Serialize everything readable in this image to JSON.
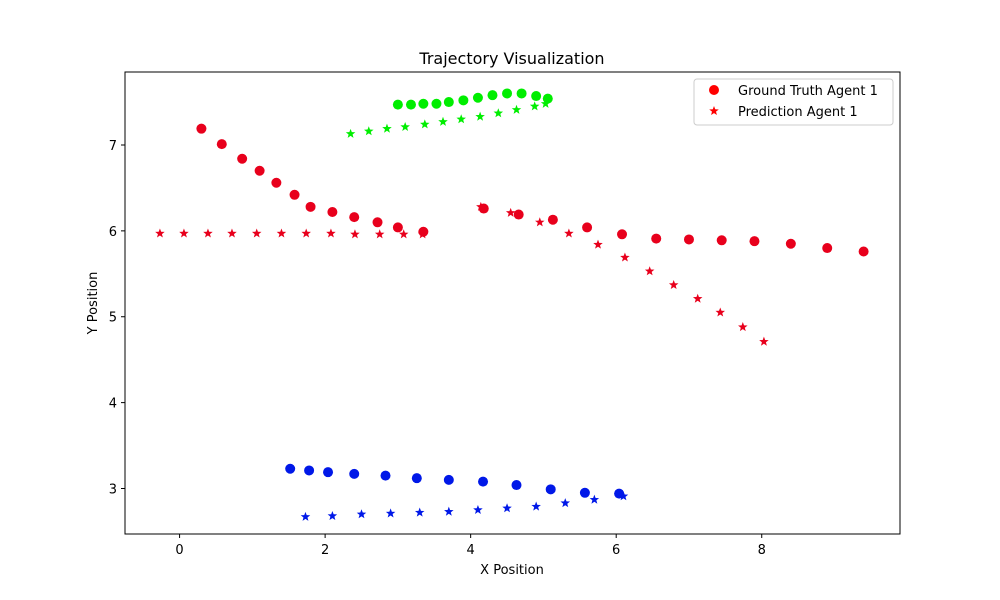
{
  "chart_data": {
    "type": "scatter",
    "title": "Trajectory Visualization",
    "xlabel": "X Position",
    "ylabel": "Y Position",
    "xlim": [
      -0.75,
      9.9
    ],
    "ylim": [
      2.47,
      7.85
    ],
    "xticks": [
      0,
      2,
      4,
      6,
      8
    ],
    "yticks": [
      3,
      4,
      5,
      6,
      7
    ],
    "grid": false,
    "legend": {
      "placement": "top-right",
      "entries": [
        {
          "label": "Ground Truth Agent 1",
          "marker": "circle",
          "color": "#ff0000"
        },
        {
          "label": "Prediction Agent 1",
          "marker": "star",
          "color": "#ff0000"
        }
      ]
    },
    "series": [
      {
        "marker": "circle",
        "color": "#e8001c",
        "points": [
          [
            0.3,
            7.19
          ],
          [
            0.58,
            7.01
          ],
          [
            0.86,
            6.84
          ],
          [
            1.1,
            6.7
          ],
          [
            1.33,
            6.56
          ],
          [
            1.58,
            6.42
          ],
          [
            1.8,
            6.28
          ],
          [
            2.1,
            6.22
          ],
          [
            2.4,
            6.16
          ],
          [
            2.72,
            6.1
          ],
          [
            3.0,
            6.04
          ],
          [
            3.35,
            5.99
          ]
        ]
      },
      {
        "marker": "star",
        "color": "#e8001c",
        "points": [
          [
            -0.27,
            5.97
          ],
          [
            0.06,
            5.97
          ],
          [
            0.39,
            5.97
          ],
          [
            0.72,
            5.97
          ],
          [
            1.06,
            5.97
          ],
          [
            1.4,
            5.97
          ],
          [
            1.74,
            5.97
          ],
          [
            2.08,
            5.97
          ],
          [
            2.41,
            5.96
          ],
          [
            2.75,
            5.96
          ],
          [
            3.08,
            5.96
          ],
          [
            3.34,
            5.96
          ]
        ]
      },
      {
        "marker": "circle",
        "color": "#e8001c",
        "points": [
          [
            4.18,
            6.26
          ],
          [
            4.66,
            6.19
          ],
          [
            5.13,
            6.13
          ],
          [
            5.6,
            6.04
          ],
          [
            6.08,
            5.96
          ],
          [
            6.55,
            5.91
          ],
          [
            7.0,
            5.9
          ],
          [
            7.45,
            5.89
          ],
          [
            7.9,
            5.88
          ],
          [
            8.4,
            5.85
          ],
          [
            8.9,
            5.8
          ],
          [
            9.4,
            5.76
          ]
        ]
      },
      {
        "marker": "star",
        "color": "#e8001c",
        "points": [
          [
            4.14,
            6.28
          ],
          [
            4.55,
            6.21
          ],
          [
            4.95,
            6.1
          ],
          [
            5.35,
            5.97
          ],
          [
            5.75,
            5.84
          ],
          [
            6.12,
            5.69
          ],
          [
            6.46,
            5.53
          ],
          [
            6.79,
            5.37
          ],
          [
            7.12,
            5.21
          ],
          [
            7.43,
            5.05
          ],
          [
            7.74,
            4.88
          ],
          [
            8.03,
            4.71
          ]
        ]
      },
      {
        "marker": "circle",
        "color": "#00ee00",
        "points": [
          [
            3.0,
            7.47
          ],
          [
            3.18,
            7.47
          ],
          [
            3.35,
            7.48
          ],
          [
            3.53,
            7.48
          ],
          [
            3.7,
            7.5
          ],
          [
            3.9,
            7.52
          ],
          [
            4.1,
            7.55
          ],
          [
            4.3,
            7.58
          ],
          [
            4.5,
            7.6
          ],
          [
            4.7,
            7.6
          ],
          [
            4.9,
            7.57
          ],
          [
            5.06,
            7.54
          ]
        ]
      },
      {
        "marker": "star",
        "color": "#00ee00",
        "points": [
          [
            2.35,
            7.13
          ],
          [
            2.6,
            7.16
          ],
          [
            2.85,
            7.19
          ],
          [
            3.1,
            7.21
          ],
          [
            3.37,
            7.24
          ],
          [
            3.62,
            7.27
          ],
          [
            3.87,
            7.3
          ],
          [
            4.13,
            7.33
          ],
          [
            4.38,
            7.37
          ],
          [
            4.63,
            7.41
          ],
          [
            4.88,
            7.45
          ],
          [
            5.03,
            7.48
          ]
        ]
      },
      {
        "marker": "circle",
        "color": "#0018e8",
        "points": [
          [
            1.52,
            3.23
          ],
          [
            1.78,
            3.21
          ],
          [
            2.04,
            3.19
          ],
          [
            2.4,
            3.17
          ],
          [
            2.83,
            3.15
          ],
          [
            3.26,
            3.12
          ],
          [
            3.7,
            3.1
          ],
          [
            4.17,
            3.08
          ],
          [
            4.63,
            3.04
          ],
          [
            5.1,
            2.99
          ],
          [
            5.57,
            2.95
          ],
          [
            6.04,
            2.94
          ]
        ]
      },
      {
        "marker": "star",
        "color": "#0018e8",
        "points": [
          [
            1.73,
            2.67
          ],
          [
            2.1,
            2.68
          ],
          [
            2.5,
            2.7
          ],
          [
            2.9,
            2.71
          ],
          [
            3.3,
            2.72
          ],
          [
            3.7,
            2.73
          ],
          [
            4.1,
            2.75
          ],
          [
            4.5,
            2.77
          ],
          [
            4.9,
            2.79
          ],
          [
            5.3,
            2.83
          ],
          [
            5.7,
            2.87
          ],
          [
            6.1,
            2.91
          ]
        ]
      }
    ]
  }
}
